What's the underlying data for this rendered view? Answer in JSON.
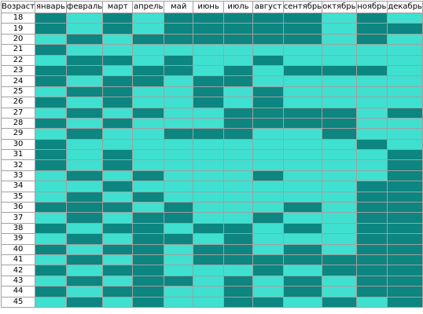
{
  "header": {
    "corner": "Возраст",
    "months": [
      "январь",
      "февраль",
      "март",
      "апрель",
      "май",
      "июнь",
      "июль",
      "август",
      "сентябрь",
      "октябрь",
      "ноябрь",
      "декабрь"
    ]
  },
  "colors": {
    "dark": "#0d8580",
    "light": "#40e0d0"
  },
  "legend_codes": {
    "D": "dark",
    "L": "light"
  },
  "rows": [
    {
      "age": "18",
      "cells": "DLDLDDDDDLDL"
    },
    {
      "age": "19",
      "cells": "DLDLDDDDDLDD"
    },
    {
      "age": "20",
      "cells": "LDLDDDDDDLDL"
    },
    {
      "age": "21",
      "cells": "DLLLLLLLLLLL"
    },
    {
      "age": "22",
      "cells": "LDDLDLLDLLLL"
    },
    {
      "age": "23",
      "cells": "DDLDDLDLDDDL"
    },
    {
      "age": "24",
      "cells": "DLDDLDDLLLLL"
    },
    {
      "age": "25",
      "cells": "LDDLLDLDLLLL"
    },
    {
      "age": "26",
      "cells": "DLDLLDLDLLLL"
    },
    {
      "age": "27",
      "cells": "LDLDLLDDDDLD"
    },
    {
      "age": "28",
      "cells": "DLDLLLDDDDLL"
    },
    {
      "age": "29",
      "cells": "LDLLDDDLLDLL"
    },
    {
      "age": "30",
      "cells": "DLLLLLLLLLDL"
    },
    {
      "age": "31",
      "cells": "DLDLLLLLLLLD"
    },
    {
      "age": "32",
      "cells": "DLDLLLLLLLLD"
    },
    {
      "age": "33",
      "cells": "LDLDLLLDLLLD"
    },
    {
      "age": "34",
      "cells": "LLDLLLLLLLDD"
    },
    {
      "age": "35",
      "cells": "LDLDLLLLLLDD"
    },
    {
      "age": "36",
      "cells": "DDDLDLLLDLDD"
    },
    {
      "age": "37",
      "cells": "LDLDDLLDLLDD"
    },
    {
      "age": "38",
      "cells": "DLDDLDDLDLDD"
    },
    {
      "age": "39",
      "cells": "LDLDDLDLLLDD"
    },
    {
      "age": "40",
      "cells": "DLDDLDDLDLDD"
    },
    {
      "age": "41",
      "cells": "LDLDLDDDDDDD"
    },
    {
      "age": "42",
      "cells": "DLDDLLLDLDDD"
    },
    {
      "age": "43",
      "cells": "LDLDDLDLDLDD"
    },
    {
      "age": "44",
      "cells": "DLDDLLDLDLDD"
    },
    {
      "age": "45",
      "cells": "LDLDLLDDLDLD"
    }
  ]
}
